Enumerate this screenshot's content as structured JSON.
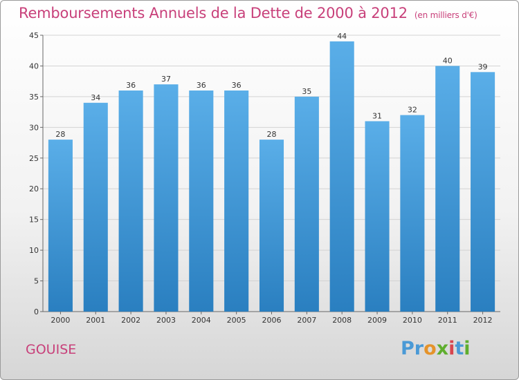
{
  "header": {
    "title": "Remboursements Annuels de la Dette de 2000 à 2012",
    "unit": "(en milliers d'€)"
  },
  "footer": {
    "commune": "GOUISE",
    "logo": [
      "P",
      "r",
      "o",
      "x",
      "i",
      "t",
      "i"
    ]
  },
  "colors": {
    "bar_top": "#5aaee8",
    "bar_bottom": "#2a7fc0",
    "title": "#c8407a"
  },
  "chart_data": {
    "type": "bar",
    "categories": [
      "2000",
      "2001",
      "2002",
      "2003",
      "2004",
      "2005",
      "2006",
      "2007",
      "2008",
      "2009",
      "2010",
      "2011",
      "2012"
    ],
    "values": [
      28,
      34,
      36,
      37,
      36,
      36,
      28,
      35,
      44,
      31,
      32,
      40,
      39
    ],
    "ylim": [
      0,
      45
    ],
    "yticks": [
      0,
      5,
      10,
      15,
      20,
      25,
      30,
      35,
      40,
      45
    ],
    "grid": true,
    "legend": "none"
  }
}
